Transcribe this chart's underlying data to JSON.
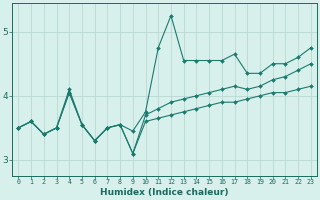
{
  "xlabel": "Humidex (Indice chaleur)",
  "x": [
    0,
    1,
    2,
    3,
    4,
    5,
    6,
    7,
    8,
    9,
    10,
    11,
    12,
    13,
    14,
    15,
    16,
    17,
    18,
    19,
    20,
    21,
    22,
    23
  ],
  "line_main": [
    3.5,
    3.6,
    3.4,
    3.5,
    4.1,
    3.55,
    3.3,
    3.5,
    3.55,
    3.45,
    3.75,
    4.75,
    5.25,
    4.55,
    4.55,
    4.55,
    4.55,
    4.65,
    4.35,
    4.35,
    4.5,
    4.5,
    4.6,
    4.75
  ],
  "line_lower": [
    3.5,
    3.6,
    3.4,
    3.5,
    4.05,
    3.55,
    3.3,
    3.5,
    3.55,
    3.1,
    3.6,
    3.65,
    3.7,
    3.75,
    3.8,
    3.85,
    3.9,
    3.9,
    3.95,
    4.0,
    4.05,
    4.05,
    4.1,
    4.15
  ],
  "line_upper": [
    3.5,
    3.6,
    3.4,
    3.5,
    4.05,
    3.55,
    3.3,
    3.5,
    3.55,
    3.1,
    3.7,
    3.8,
    3.9,
    3.95,
    4.0,
    4.05,
    4.1,
    4.15,
    4.1,
    4.15,
    4.25,
    4.3,
    4.4,
    4.5
  ],
  "color": "#1a7a6e",
  "bg_color": "#d8f0ec",
  "grid_color": "#b8d8d4",
  "axis_color": "#1a6a60",
  "ylim": [
    2.75,
    5.45
  ],
  "yticks": [
    3,
    4,
    5
  ],
  "xlim": [
    -0.5,
    23.5
  ]
}
